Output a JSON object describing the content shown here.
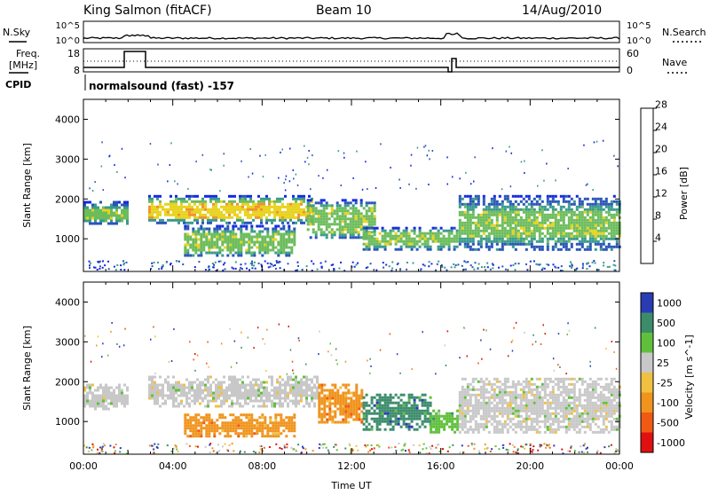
{
  "header": {
    "station": "King Salmon (fitACF)",
    "beam": "Beam 10",
    "date": "14/Aug/2010"
  },
  "aux": {
    "nsky_label": "N.Sky",
    "nsearch_label": "N.Search",
    "noise_ticks": [
      "10^5",
      "10^0"
    ],
    "freq_label_1": "Freq.",
    "freq_label_2": "[MHz]",
    "freq_ticks": [
      "18",
      "8"
    ],
    "nave_label": "Nave",
    "nave_ticks": [
      "60",
      "0"
    ],
    "cpid_label": "CPID",
    "cpid_text": "normalsound (fast) -157"
  },
  "chart_data": [
    {
      "type": "heatmap",
      "title": "",
      "ylabel": "Slant Range [km]",
      "xlabel": "",
      "xlim": [
        "00:00",
        "24:00"
      ],
      "ylim": [
        180,
        4500
      ],
      "yticks": [
        1000,
        2000,
        3000,
        4000
      ],
      "colorbar": {
        "label": "Power [dB]",
        "ticks": [
          4,
          8,
          12,
          16,
          20,
          24,
          28
        ],
        "colors": [
          "#1428e0",
          "#2a55b8",
          "#3a9a8c",
          "#6cbc5c",
          "#e8d21e",
          "#f0922a",
          "#e82410"
        ]
      },
      "bands": [
        {
          "t0": 0.0,
          "t1": 2.0,
          "r0": 1350,
          "r1": 1950,
          "level": 12
        },
        {
          "t0": 2.9,
          "t1": 10.2,
          "r0": 1400,
          "r1": 2100,
          "level": 20
        },
        {
          "t0": 4.5,
          "t1": 9.5,
          "r0": 600,
          "r1": 1350,
          "level": 16
        },
        {
          "t0": 10.0,
          "t1": 13.0,
          "r0": 1000,
          "r1": 2000,
          "level": 16
        },
        {
          "t0": 12.5,
          "t1": 16.7,
          "r0": 750,
          "r1": 1300,
          "level": 16
        },
        {
          "t0": 16.8,
          "t1": 24.0,
          "r0": 700,
          "r1": 2100,
          "level": 12
        }
      ]
    },
    {
      "type": "heatmap",
      "title": "",
      "ylabel": "Slant Range [km]",
      "xlabel": "Time UT",
      "xlim": [
        "00:00",
        "24:00"
      ],
      "xticks": [
        "00:00",
        "04:00",
        "08:00",
        "12:00",
        "16:00",
        "20:00",
        "00:00"
      ],
      "ylim": [
        180,
        4500
      ],
      "yticks": [
        1000,
        2000,
        3000,
        4000
      ],
      "colorbar": {
        "label": "Velocity [m s^-1]",
        "ticks": [
          1000,
          500,
          100,
          25,
          -25,
          -100,
          -500,
          -1000
        ],
        "colors": [
          "#2a3cb4",
          "#3c8c6c",
          "#60c03c",
          "#c8c8c8",
          "#f0c040",
          "#f0941e",
          "#f05a14",
          "#e01010"
        ]
      },
      "bands": [
        {
          "t0": 0.0,
          "t1": 2.0,
          "r0": 1300,
          "r1": 1950,
          "level": 0
        },
        {
          "t0": 2.9,
          "t1": 10.5,
          "r0": 1400,
          "r1": 2150,
          "level": 0
        },
        {
          "t0": 4.5,
          "t1": 9.5,
          "r0": 600,
          "r1": 1200,
          "level": -100
        },
        {
          "t0": 10.5,
          "t1": 12.5,
          "r0": 1000,
          "r1": 1950,
          "level": -100
        },
        {
          "t0": 12.5,
          "t1": 15.5,
          "r0": 800,
          "r1": 1700,
          "level": 500
        },
        {
          "t0": 15.5,
          "t1": 16.7,
          "r0": 750,
          "r1": 1300,
          "level": 100
        },
        {
          "t0": 16.8,
          "t1": 24.0,
          "r0": 700,
          "r1": 2100,
          "level": 0
        }
      ]
    }
  ]
}
